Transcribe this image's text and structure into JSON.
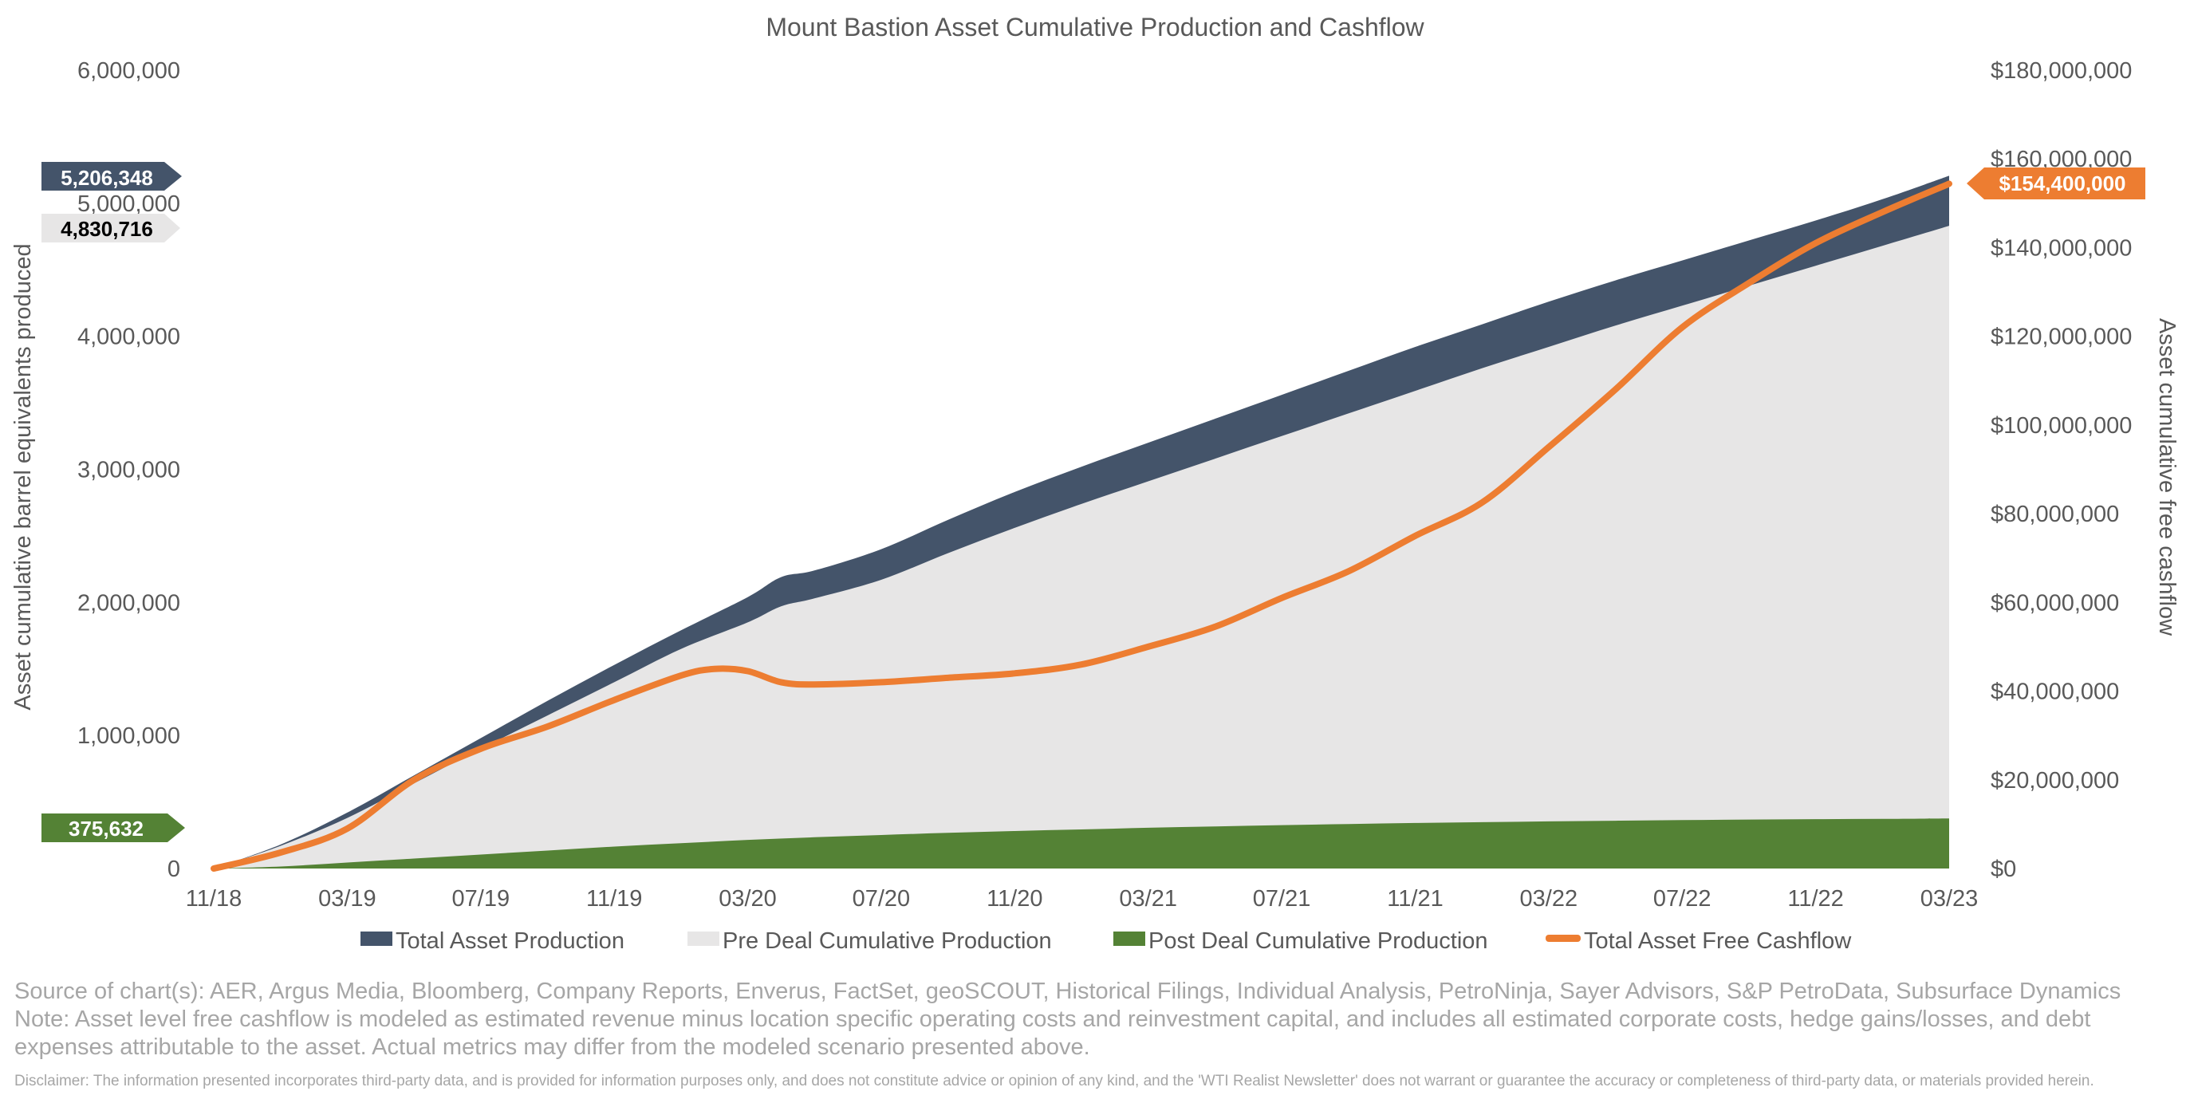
{
  "chart_data": {
    "type": "area",
    "title": "Mount Bastion Asset Cumulative Production and Cashflow",
    "ylabel_left": "Asset cumulative barrel equivalents produced",
    "ylabel_right": "Asset cumulative free cashflow",
    "ylim_left": [
      0,
      6000000
    ],
    "ylim_right": [
      0,
      180000000
    ],
    "left_ticks": [
      "0",
      "1,000,000",
      "2,000,000",
      "3,000,000",
      "4,000,000",
      "5,000,000",
      "6,000,000"
    ],
    "right_ticks": [
      "$0",
      "$20,000,000",
      "$40,000,000",
      "$60,000,000",
      "$80,000,000",
      "$100,000,000",
      "$120,000,000",
      "$140,000,000",
      "$160,000,000",
      "$180,000,000"
    ],
    "x_tick_labels": [
      "11/18",
      "03/19",
      "07/19",
      "11/19",
      "03/20",
      "07/20",
      "11/20",
      "03/21",
      "07/21",
      "11/21",
      "03/22",
      "07/22",
      "11/22",
      "03/23"
    ],
    "x_month_index": [
      0,
      4,
      8,
      12,
      16,
      20,
      24,
      28,
      32,
      36,
      40,
      44,
      48,
      52
    ],
    "x_max_month": 52,
    "series": [
      {
        "name": "Total Asset Production",
        "axis": "left",
        "kind": "area",
        "color": "#44546a",
        "month": [
          0,
          2,
          4,
          6,
          8,
          10,
          12,
          14,
          16,
          17,
          18,
          20,
          22,
          24,
          26,
          28,
          30,
          32,
          34,
          36,
          38,
          40,
          42,
          44,
          46,
          48,
          50,
          52
        ],
        "values": [
          0,
          180000,
          420000,
          700000,
          980000,
          1260000,
          1530000,
          1790000,
          2040000,
          2190000,
          2240000,
          2400000,
          2620000,
          2830000,
          3020000,
          3200000,
          3380000,
          3560000,
          3740000,
          3920000,
          4090000,
          4260000,
          4420000,
          4570000,
          4720000,
          4870000,
          5030000,
          5206348
        ]
      },
      {
        "name": "Pre Deal Cumulative Production",
        "axis": "left",
        "kind": "area",
        "color": "#e7e6e6",
        "month": [
          0,
          2,
          4,
          6,
          8,
          10,
          12,
          14,
          16,
          17,
          18,
          20,
          22,
          24,
          26,
          28,
          30,
          32,
          34,
          36,
          38,
          40,
          42,
          44,
          46,
          48,
          50,
          52
        ],
        "values": [
          0,
          170000,
          380000,
          640000,
          900000,
          1150000,
          1400000,
          1650000,
          1850000,
          1970000,
          2030000,
          2170000,
          2370000,
          2560000,
          2740000,
          2910000,
          3080000,
          3250000,
          3420000,
          3590000,
          3760000,
          3920000,
          4080000,
          4230000,
          4380000,
          4530000,
          4680000,
          4830716
        ]
      },
      {
        "name": "Post Deal Cumulative Production",
        "axis": "left",
        "kind": "area",
        "color": "#548235",
        "month": [
          0,
          2,
          4,
          6,
          8,
          10,
          12,
          14,
          16,
          18,
          20,
          22,
          24,
          26,
          28,
          30,
          32,
          34,
          36,
          38,
          40,
          42,
          44,
          46,
          48,
          50,
          52
        ],
        "values": [
          0,
          15000,
          45000,
          75000,
          105000,
          135000,
          165000,
          190000,
          215000,
          235000,
          252000,
          268000,
          282000,
          294000,
          306000,
          316000,
          326000,
          334000,
          342000,
          348000,
          354000,
          359000,
          364000,
          368000,
          371000,
          373000,
          375632
        ]
      },
      {
        "name": "Total Asset Free Cashflow",
        "axis": "right",
        "kind": "line",
        "color": "#ed7d31",
        "month": [
          0,
          2,
          4,
          6,
          8,
          10,
          12,
          14,
          15,
          16,
          17,
          18,
          20,
          22,
          24,
          26,
          28,
          30,
          32,
          34,
          36,
          38,
          40,
          42,
          44,
          46,
          48,
          50,
          52
        ],
        "values": [
          0,
          3600000,
          9000000,
          20000000,
          27000000,
          32000000,
          38000000,
          43500000,
          45000000,
          44500000,
          42000000,
          41500000,
          42000000,
          43000000,
          44000000,
          46000000,
          50000000,
          54500000,
          61000000,
          67000000,
          75000000,
          82500000,
          95000000,
          108000000,
          122000000,
          132000000,
          141000000,
          148000000,
          154400000
        ]
      }
    ],
    "end_labels": {
      "total": "5,206,348",
      "pre_deal": "4,830,716",
      "post_deal": "375,632",
      "cashflow": "$154,400,000"
    }
  },
  "footer": {
    "source": "Source of chart(s): AER, Argus Media,  Bloomberg, Company Reports, Enverus, FactSet, geoSCOUT, Historical Filings, Individual Analysis, PetroNinja, Sayer Advisors, S&P PetroData, Subsurface Dynamics",
    "note": "Note: Asset level free cashflow is modeled as estimated revenue minus location specific operating costs and reinvestment capital, and includes all estimated corporate costs, hedge gains/losses, and debt expenses attributable to the asset. Actual metrics may differ from the modeled scenario presented above.",
    "disclaimer": "Disclaimer: The information presented incorporates third-party data, and is provided for information purposes only, and does not constitute advice or opinion of any kind, and the 'WTI Realist Newsletter' does not warrant or guarantee the accuracy or completeness of third-party data, or materials provided herein."
  }
}
